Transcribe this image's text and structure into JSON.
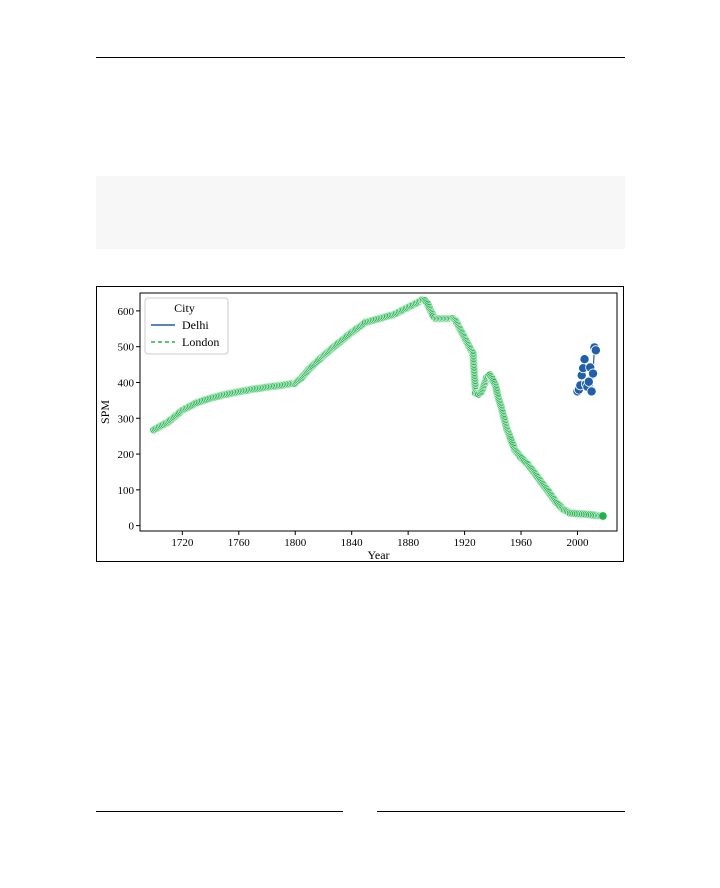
{
  "chart_data": {
    "type": "scatter",
    "xlabel": "Year",
    "ylabel": "SPM",
    "xlim": [
      1690,
      2028
    ],
    "ylim": [
      -15,
      650
    ],
    "x_ticks": [
      1720,
      1760,
      1800,
      1840,
      1880,
      1920,
      1960,
      2000
    ],
    "y_ticks": [
      0,
      100,
      200,
      300,
      400,
      500,
      600
    ],
    "grid": false,
    "legend": {
      "title": "City",
      "placement": "top-left"
    },
    "series": [
      {
        "name": "Delhi",
        "color": "#1f5fad",
        "line_style": "solid",
        "x": [
          2000,
          2001,
          2002,
          2003,
          2004,
          2005,
          2006,
          2007,
          2008,
          2009,
          2010,
          2011,
          2012,
          2013
        ],
        "y": [
          375,
          380,
          392,
          420,
          440,
          465,
          395,
          388,
          402,
          442,
          375,
          425,
          498,
          490
        ]
      },
      {
        "name": "London",
        "color": "#1db54b",
        "line_style": "dashed",
        "x": [
          1700,
          1710,
          1720,
          1730,
          1740,
          1750,
          1760,
          1770,
          1780,
          1790,
          1800,
          1805,
          1810,
          1820,
          1830,
          1840,
          1850,
          1860,
          1870,
          1880,
          1886,
          1890,
          1892,
          1894,
          1896,
          1898,
          1900,
          1904,
          1908,
          1912,
          1914,
          1916,
          1918,
          1920,
          1922,
          1924,
          1926,
          1927,
          1928,
          1930,
          1932,
          1934,
          1936,
          1938,
          1940,
          1942,
          1944,
          1946,
          1948,
          1950,
          1952,
          1954,
          1956,
          1958,
          1960,
          1965,
          1970,
          1975,
          1980,
          1985,
          1990,
          1995,
          2000,
          2005,
          2010,
          2015,
          2018
        ],
        "y": [
          268,
          290,
          322,
          343,
          356,
          366,
          374,
          381,
          387,
          392,
          398,
          415,
          438,
          475,
          508,
          540,
          568,
          579,
          590,
          610,
          622,
          630,
          628,
          618,
          600,
          585,
          578,
          578,
          578,
          578,
          570,
          555,
          540,
          525,
          510,
          495,
          480,
          415,
          370,
          368,
          375,
          395,
          415,
          420,
          408,
          390,
          355,
          330,
          300,
          270,
          250,
          228,
          210,
          200,
          190,
          170,
          145,
          118,
          92,
          65,
          45,
          35,
          33,
          32,
          30,
          28,
          27
        ]
      }
    ]
  }
}
